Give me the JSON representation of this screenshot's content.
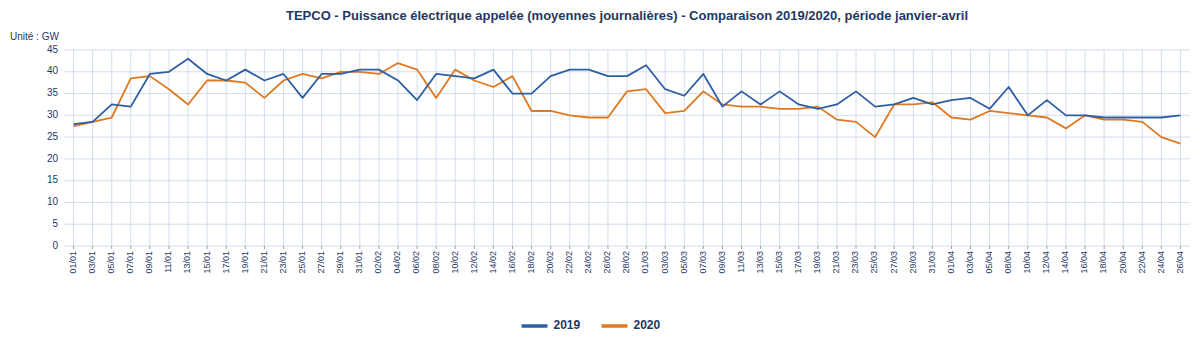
{
  "chart_data": {
    "type": "line",
    "title": "TEPCO - Puissance électrique appelée (moyennes journalières) - Comparaison 2019/2020, période janvier-avril",
    "ylabel": "Unité : GW",
    "categories": [
      "01/01",
      "03/01",
      "05/01",
      "07/01",
      "09/01",
      "11/01",
      "13/01",
      "15/01",
      "17/01",
      "19/01",
      "21/01",
      "23/01",
      "25/01",
      "27/01",
      "29/01",
      "31/01",
      "02/02",
      "04/02",
      "06/02",
      "08/02",
      "10/02",
      "12/02",
      "14/02",
      "16/02",
      "18/02",
      "20/02",
      "22/02",
      "24/02",
      "26/02",
      "28/02",
      "01/03",
      "03/03",
      "05/03",
      "07/03",
      "09/03",
      "11/03",
      "13/03",
      "15/03",
      "17/03",
      "19/03",
      "21/03",
      "23/03",
      "25/03",
      "27/03",
      "29/03",
      "31/03",
      "01/04",
      "03/04",
      "05/04",
      "08/04",
      "10/04",
      "12/04",
      "14/04",
      "16/04",
      "18/04",
      "20/04",
      "22/04",
      "24/04",
      "26/04"
    ],
    "series": [
      {
        "name": "2019",
        "color": "#2E5FA3",
        "values": [
          28.0,
          28.5,
          32.5,
          32.0,
          39.5,
          40.0,
          43.0,
          39.5,
          38.0,
          40.5,
          38.0,
          39.5,
          34.0,
          39.5,
          39.5,
          40.5,
          40.5,
          38.0,
          33.5,
          39.5,
          39.0,
          38.5,
          40.5,
          35.0,
          35.0,
          39.0,
          40.5,
          40.5,
          39.0,
          39.0,
          41.5,
          36.0,
          34.5,
          39.5,
          32.0,
          35.5,
          32.5,
          35.5,
          32.5,
          31.5,
          32.5,
          35.5,
          32.0,
          32.5,
          34.0,
          32.5,
          33.5,
          34.0,
          31.5,
          36.5,
          30.0,
          33.5,
          30.0,
          30.0,
          29.5,
          29.5,
          29.5,
          29.5,
          30.0
        ]
      },
      {
        "name": "2020",
        "color": "#E07820",
        "values": [
          27.5,
          28.5,
          29.5,
          38.5,
          39.0,
          36.0,
          32.5,
          38.0,
          38.0,
          37.5,
          34.0,
          38.0,
          39.5,
          38.5,
          40.0,
          40.0,
          39.5,
          42.0,
          40.5,
          34.0,
          40.5,
          38.0,
          36.5,
          39.0,
          31.0,
          31.0,
          30.0,
          29.5,
          29.5,
          35.5,
          36.0,
          30.5,
          31.0,
          35.5,
          32.5,
          32.0,
          32.0,
          31.5,
          31.5,
          32.0,
          29.0,
          28.5,
          25.0,
          32.5,
          32.5,
          33.0,
          29.5,
          29.0,
          31.0,
          30.5,
          30.0,
          29.5,
          27.0,
          30.0,
          29.0,
          29.0,
          28.5,
          25.0,
          23.5
        ]
      }
    ],
    "ylim": [
      0,
      45
    ],
    "yticks": [
      0,
      5,
      10,
      15,
      20,
      25,
      30,
      35,
      40,
      45
    ],
    "grid": true,
    "legend": "bottom"
  }
}
